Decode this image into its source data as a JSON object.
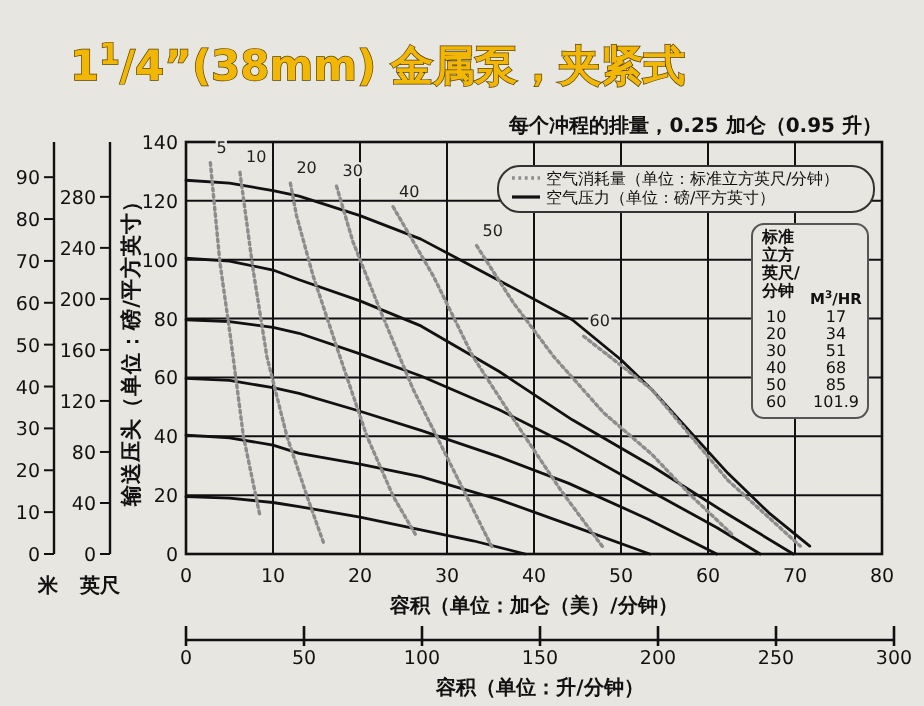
{
  "chart_data": {
    "type": "line",
    "title": "1$^{1}$/4”(38mm) 金属泵，夹紧式",
    "subtitle": "每个冲程的排量，0.25 加仑（0.95 升）",
    "xlabel": "容积（单位：加仑（美）/分钟）",
    "ylabel": "输送压头（单位：磅/平方英寸）",
    "y2label": "米",
    "y3label": "英尺",
    "x2label": "容积（单位：升/分钟）",
    "xlim": [
      0,
      80
    ],
    "xticks": [
      0,
      10,
      20,
      30,
      40,
      50,
      60,
      70,
      80
    ],
    "ylim": [
      0,
      140
    ],
    "yticks": [
      0,
      20,
      40,
      60,
      80,
      100,
      120,
      140
    ],
    "y2lim": [
      0,
      98.4
    ],
    "y2ticks": [
      0,
      10,
      20,
      30,
      40,
      50,
      60,
      70,
      80,
      90
    ],
    "y3lim": [
      0,
      323
    ],
    "y3ticks": [
      0,
      40,
      80,
      120,
      160,
      200,
      240,
      280
    ],
    "x2lim": [
      0,
      300
    ],
    "x2ticks": [
      0,
      50,
      100,
      150,
      200,
      250,
      300
    ],
    "grid": true,
    "annotations": [
      "空气消耗量（单位：标准立方英尺/分钟）",
      "空气压力（单位：磅/平方英寸）",
      "标准立方英尺/分钟",
      "M$^{3}$/HR",
      "10",
      "17",
      "20",
      "34",
      "30",
      "51",
      "40",
      "68",
      "50",
      "85",
      "60",
      "101.9"
    ],
    "series": [
      {
        "color": "#111111",
        "line_style": "solid",
        "x": [
          0,
          5,
          10,
          13,
          20,
          27,
          35,
          44.4,
          50,
          53.5,
          62.3,
          67,
          71.7
        ],
        "values": [
          127,
          126,
          123.5,
          121.6,
          115,
          107,
          94.5,
          79.6,
          66,
          56,
          27.4,
          14,
          2.7
        ]
      },
      {
        "color": "#111111",
        "line_style": "solid",
        "x": [
          0,
          5,
          10,
          13,
          20,
          27,
          36,
          44.4,
          53.5,
          62,
          69.8
        ],
        "values": [
          100.5,
          99.5,
          96.5,
          93.2,
          86,
          77.5,
          62,
          45.6,
          30,
          14,
          0
        ]
      },
      {
        "color": "#111111",
        "line_style": "solid",
        "x": [
          0,
          5,
          10,
          13,
          20,
          27,
          36,
          44,
          53,
          61,
          66
        ],
        "values": [
          79.6,
          79,
          77,
          75,
          68,
          60.5,
          49,
          37,
          22,
          9,
          0
        ]
      },
      {
        "color": "#111111",
        "line_style": "solid",
        "x": [
          0,
          5,
          10,
          13,
          20,
          27,
          36,
          44,
          53,
          61
        ],
        "values": [
          59.7,
          59,
          56.5,
          54.6,
          48.5,
          42,
          33,
          24,
          12,
          0
        ]
      },
      {
        "color": "#111111",
        "line_style": "solid",
        "x": [
          0,
          5,
          10,
          13,
          20,
          27,
          36,
          44,
          53.3
        ],
        "values": [
          40.4,
          39.5,
          37,
          34.2,
          30.5,
          26.3,
          18.5,
          10,
          0
        ]
      },
      {
        "color": "#111111",
        "line_style": "solid",
        "x": [
          0,
          5,
          10,
          13,
          20,
          27,
          33,
          39
        ],
        "values": [
          19.5,
          19,
          17.5,
          16.1,
          12.5,
          8.2,
          4.5,
          0
        ]
      },
      {
        "name": "5",
        "color": "#8c8c8c",
        "line_style": "dotted",
        "x": [
          2.8,
          3.9,
          5.1,
          6.6,
          8.5
        ],
        "values": [
          133,
          99,
          74,
          40,
          13
        ]
      },
      {
        "name": "10",
        "color": "#8c8c8c",
        "line_style": "dotted",
        "x": [
          6.2,
          7.7,
          9.3,
          11.6,
          13.9,
          15.8
        ],
        "values": [
          129.7,
          96.8,
          67,
          40,
          19.7,
          3.9
        ]
      },
      {
        "name": "20",
        "color": "#8c8c8c",
        "line_style": "dotted",
        "x": [
          12,
          12.7,
          14.6,
          17.7,
          20.8,
          23.8,
          26.5
        ],
        "values": [
          126,
          115,
          94.6,
          67,
          40,
          19.7,
          6
        ]
      },
      {
        "name": "30",
        "color": "#8c8c8c",
        "line_style": "dotted",
        "x": [
          17.3,
          19.2,
          22.3,
          26.1,
          30.7,
          35.3
        ],
        "values": [
          125,
          106,
          83,
          56,
          28.8,
          1.6
        ]
      },
      {
        "name": "40",
        "color": "#8c8c8c",
        "line_style": "dotted",
        "x": [
          23.8,
          28.4,
          33,
          38.4,
          43,
          48
        ],
        "values": [
          118,
          94.6,
          67,
          42.4,
          22,
          2
        ]
      },
      {
        "name": "50",
        "color": "#8c8c8c",
        "line_style": "dotted",
        "x": [
          33.4,
          37.6,
          42.2,
          48,
          53.5,
          58,
          63
        ],
        "values": [
          104.8,
          85.5,
          67.3,
          48,
          34,
          20,
          6
        ]
      },
      {
        "name": "60",
        "color": "#8c8c8c",
        "line_style": "dotted",
        "x": [
          45.7,
          53.5,
          62.3,
          70.6
        ],
        "values": [
          74,
          56,
          25,
          2.7
        ]
      }
    ]
  }
}
